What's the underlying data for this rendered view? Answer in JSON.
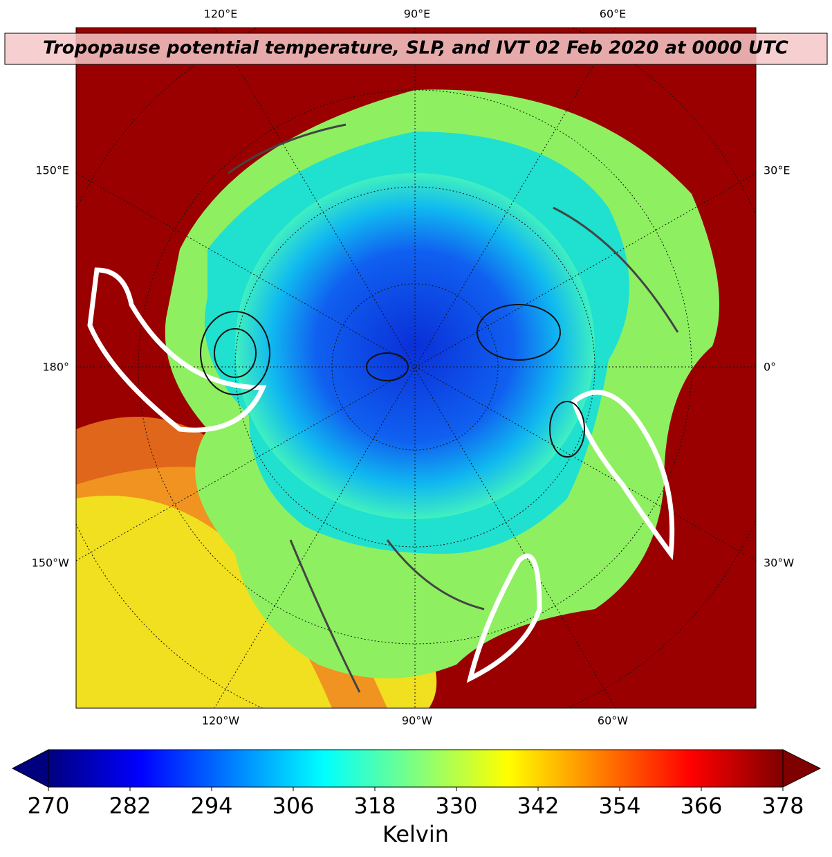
{
  "title": "Tropopause potential temperature, SLP, and IVT 02 Feb 2020 at 0000 UTC",
  "map": {
    "top_labels": [
      "120°E",
      "90°E",
      "60°E"
    ],
    "left_labels": [
      "150°E",
      "180°",
      "150°W"
    ],
    "right_labels": [
      "30°E",
      "0°",
      "30°W"
    ],
    "bottom_labels": [
      "120°W",
      "90°W",
      "60°W"
    ]
  },
  "colorbar": {
    "colormap": "jet",
    "extend": "both",
    "lim": [
      270,
      378
    ],
    "ticks": [
      270,
      282,
      294,
      306,
      318,
      330,
      342,
      354,
      366,
      378
    ],
    "label": "Kelvin"
  }
}
